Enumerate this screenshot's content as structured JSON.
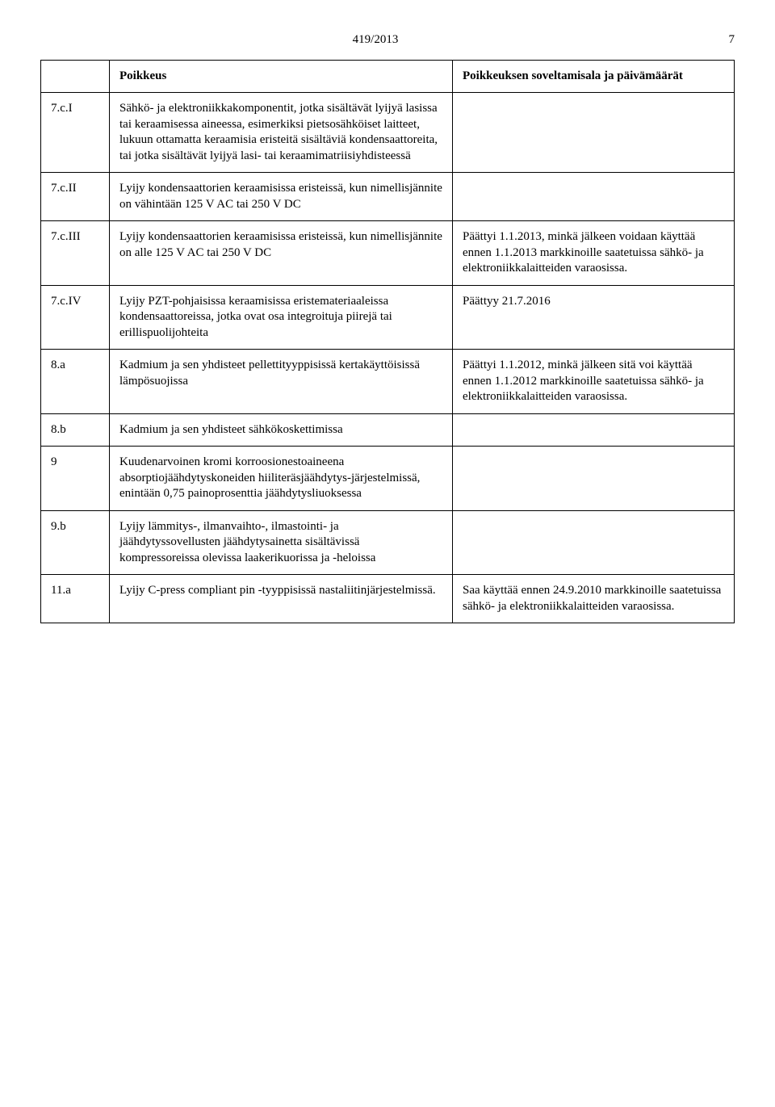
{
  "header": {
    "doc_number": "419/2013",
    "page_number": "7"
  },
  "table": {
    "head": {
      "c0": "",
      "c1": "Poikkeus",
      "c2": "Poikkeuksen soveltamisala ja päivämäärät"
    },
    "rows": [
      {
        "id": "7.c.I",
        "poikkeus": "Sähkö- ja elektroniikkakomponentit, jotka sisältävät lyijyä lasissa tai keraamisessa aineessa, esimerkiksi pietsosähköiset laitteet, lukuun ottamatta keraamisia eristeitä sisältäviä kondensaattoreita, tai jotka sisältävät lyijyä lasi- tai keraamimatriisiyhdisteessä",
        "sov": ""
      },
      {
        "id": "7.c.II",
        "poikkeus": "Lyijy kondensaattorien keraamisissa eristeissä, kun nimellisjännite on vähintään 125 V AC tai 250 V DC",
        "sov": ""
      },
      {
        "id": "7.c.III",
        "poikkeus": "Lyijy kondensaattorien keraamisissa eristeissä, kun nimellisjännite on alle 125 V AC tai 250 V DC",
        "sov": "Päättyi 1.1.2013, minkä jälkeen voidaan käyttää ennen 1.1.2013 markkinoille saatetuissa sähkö- ja elektroniikkalaitteiden varaosissa."
      },
      {
        "id": "7.c.IV",
        "poikkeus": "Lyijy PZT-pohjaisissa keraamisissa eristemateriaaleissa kondensaattoreissa, jotka ovat osa integroituja piirejä tai erillispuolijohteita",
        "sov": "Päättyy 21.7.2016"
      },
      {
        "id": "8.a",
        "poikkeus": "Kadmium ja sen yhdisteet pellettityyppisissä kertakäyttöisissä lämpösuojissa",
        "sov": "Päättyi 1.1.2012, minkä jälkeen sitä voi käyttää ennen 1.1.2012 markkinoille saatetuissa sähkö- ja elektroniikkalaitteiden varaosissa."
      },
      {
        "id": "8.b",
        "poikkeus": "Kadmium ja sen yhdisteet sähkökoskettimissa",
        "sov": ""
      },
      {
        "id": "9",
        "poikkeus": "Kuudenarvoinen kromi korroosionestoaineena absorptiojäähdytyskoneiden hiiliteräsjäähdytys-järjestelmissä, enintään 0,75 painoprosenttia jäähdytysliuoksessa",
        "sov": ""
      },
      {
        "id": "9.b",
        "poikkeus": "Lyijy lämmitys-, ilmanvaihto-, ilmastointi- ja jäähdytyssovellusten jäähdytysainetta sisältävissä kompressoreissa olevissa laakerikuorissa ja -heloissa",
        "sov": ""
      },
      {
        "id": "11.a",
        "poikkeus": "Lyijy C-press compliant pin -tyyppisissä nastaliitinjärjestelmissä.",
        "sov": "Saa käyttää ennen 24.9.2010 markkinoille saatetuissa sähkö- ja elektroniikkalaitteiden varaosissa."
      }
    ]
  }
}
